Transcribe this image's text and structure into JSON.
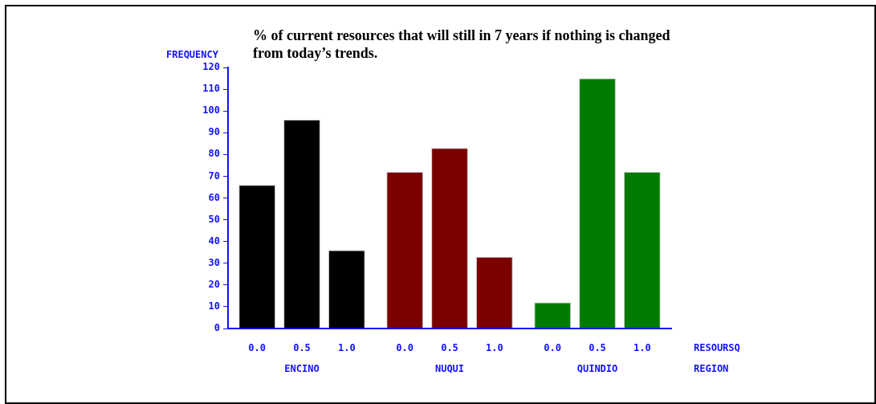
{
  "chart_data": {
    "type": "bar",
    "title": "% of current resources that will still in 7 years if nothing is changed from today’s trends.",
    "ylabel": "FREQUENCY",
    "xlabel": "REGION",
    "legend_title": "RESOURSQ",
    "categories": [
      "ENCINO",
      "NUQUI",
      "QUINDIO"
    ],
    "series": [
      {
        "name": "0.0",
        "colors": [
          "#000000",
          "#7a0000",
          "#007a00"
        ],
        "values": [
          66,
          72,
          12
        ]
      },
      {
        "name": "0.5",
        "colors": [
          "#000000",
          "#7a0000",
          "#007a00"
        ],
        "values": [
          96,
          83,
          115
        ]
      },
      {
        "name": "1.0",
        "colors": [
          "#000000",
          "#7a0000",
          "#007a00"
        ],
        "values": [
          36,
          33,
          72
        ]
      }
    ],
    "ylim": [
      0,
      120
    ],
    "yticks": [
      0,
      10,
      20,
      30,
      40,
      50,
      60,
      70,
      80,
      90,
      100,
      110,
      120
    ],
    "grid": false,
    "legend": false
  }
}
